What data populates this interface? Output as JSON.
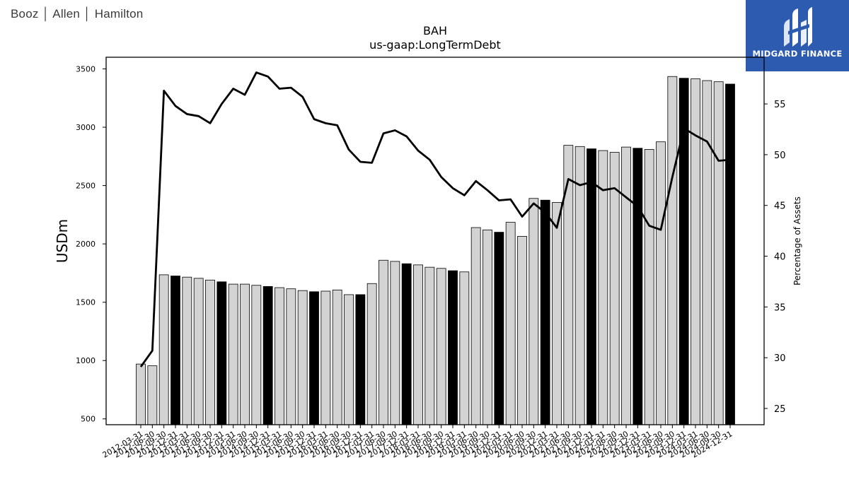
{
  "header": {
    "brand_text": "Booz │ Allen │ Hamilton",
    "logo_text": "MIDGARD FINANCE"
  },
  "colors": {
    "bar_default": "#d3d3d3",
    "bar_highlight": "#000000",
    "line": "#000000",
    "logo_bg": "#2d5bb0"
  },
  "chart_data": {
    "type": "bar",
    "title": "BAH",
    "subtitle": "us-gaap:LongTermDebt",
    "ylabel": "USDm",
    "y2label": "Percentage of Assets",
    "ylim": [
      450,
      3600
    ],
    "y2lim": [
      23.4,
      59.6
    ],
    "yticks": [
      500,
      1000,
      1500,
      2000,
      2500,
      3000,
      3500
    ],
    "y2ticks": [
      25,
      30,
      35,
      40,
      45,
      50,
      55
    ],
    "grid": false,
    "categories": [
      "2012-03-31",
      "2012-06-30",
      "2012-09-30",
      "2012-12-31",
      "2013-03-31",
      "2013-06-30",
      "2013-09-30",
      "2013-12-31",
      "2014-03-31",
      "2014-06-30",
      "2014-09-30",
      "2014-12-31",
      "2015-03-31",
      "2015-06-30",
      "2015-09-30",
      "2015-12-31",
      "2016-03-31",
      "2016-06-30",
      "2016-09-30",
      "2016-12-31",
      "2017-03-31",
      "2017-06-30",
      "2017-09-30",
      "2017-12-31",
      "2018-03-31",
      "2018-06-30",
      "2018-09-30",
      "2018-12-31",
      "2019-03-31",
      "2019-06-30",
      "2019-09-30",
      "2019-12-31",
      "2020-03-31",
      "2020-06-30",
      "2020-09-30",
      "2020-12-31",
      "2021-03-31",
      "2021-06-30",
      "2021-09-30",
      "2021-12-31",
      "2022-03-31",
      "2022-06-30",
      "2022-09-30",
      "2022-12-31",
      "2023-03-31",
      "2023-06-30",
      "2023-09-30",
      "2023-12-31",
      "2024-03-31",
      "2024-06-30",
      "2024-09-30",
      "2024-12-31"
    ],
    "series": [
      {
        "type": "bar",
        "axis": "left",
        "values": [
          970,
          955,
          1735,
          1725,
          1715,
          1705,
          1690,
          1675,
          1655,
          1655,
          1645,
          1635,
          1625,
          1615,
          1600,
          1590,
          1595,
          1605,
          1565,
          1565,
          1660,
          1860,
          1850,
          1830,
          1820,
          1800,
          1790,
          1770,
          1760,
          2140,
          2120,
          2100,
          2185,
          2065,
          2390,
          2375,
          2355,
          2845,
          2835,
          2815,
          2800,
          2785,
          2830,
          2820,
          2810,
          2875,
          3435,
          3420,
          3415,
          3400,
          3390,
          3370
        ],
        "highlight": [
          false,
          false,
          false,
          true,
          false,
          false,
          false,
          true,
          false,
          false,
          false,
          true,
          false,
          false,
          false,
          true,
          false,
          false,
          false,
          true,
          false,
          false,
          false,
          true,
          false,
          false,
          false,
          true,
          false,
          false,
          false,
          true,
          false,
          false,
          false,
          true,
          false,
          false,
          false,
          true,
          false,
          false,
          false,
          true,
          false,
          false,
          false,
          true,
          false,
          false,
          false,
          true
        ]
      },
      {
        "type": "line",
        "axis": "right",
        "values": [
          29.1,
          30.7,
          56.3,
          54.8,
          54.0,
          53.8,
          53.1,
          55.0,
          56.5,
          55.9,
          58.1,
          57.7,
          56.5,
          56.6,
          55.7,
          53.5,
          53.1,
          52.9,
          50.5,
          49.3,
          49.2,
          52.1,
          52.4,
          51.8,
          50.4,
          49.5,
          47.8,
          46.7,
          46.0,
          47.4,
          46.5,
          45.5,
          45.6,
          43.9,
          45.2,
          44.3,
          42.8,
          47.6,
          47.0,
          47.3,
          46.5,
          46.7,
          45.8,
          44.9,
          43.0,
          42.6,
          47.8,
          52.6,
          51.9,
          51.3,
          49.4,
          49.5
        ]
      }
    ]
  }
}
